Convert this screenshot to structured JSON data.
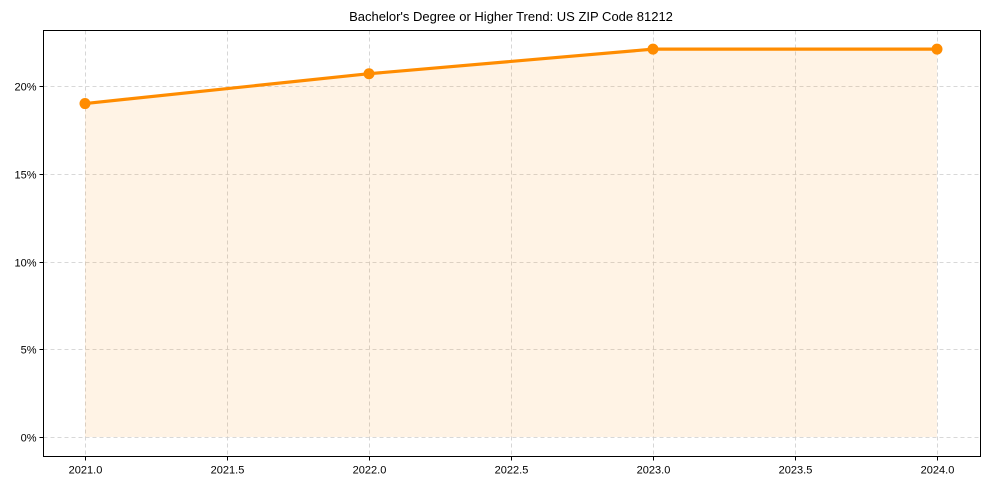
{
  "chart_data": {
    "type": "line",
    "title": "Bachelor's Degree or Higher Trend: US ZIP Code 81212",
    "xlabel": "",
    "ylabel": "",
    "x": [
      2021,
      2022,
      2023,
      2024
    ],
    "series": [
      {
        "name": "Bachelor's Degree or Higher",
        "values": [
          19.0,
          20.7,
          22.1,
          22.1
        ],
        "color": "#ff8c00",
        "fill": true,
        "fill_color": "#ff8c00",
        "fill_alpha": 0.1,
        "marker": "circle"
      }
    ],
    "xticks": [
      "2021.0",
      "2021.5",
      "2022.0",
      "2022.5",
      "2023.0",
      "2023.5",
      "2024.0"
    ],
    "xtick_values": [
      2021.0,
      2021.5,
      2022.0,
      2022.5,
      2023.0,
      2023.5,
      2024.0
    ],
    "yticks": [
      "0%",
      "5%",
      "10%",
      "15%",
      "20%"
    ],
    "ytick_values": [
      0,
      5,
      10,
      15,
      20
    ],
    "xlim": [
      2020.85,
      2024.15
    ],
    "ylim": [
      -1.1,
      23.2
    ],
    "grid": true,
    "legend": null
  }
}
